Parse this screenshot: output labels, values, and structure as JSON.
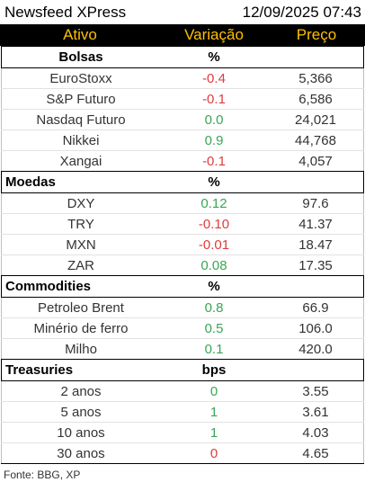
{
  "title": "Newsfeed XPress",
  "datetime": "12/09/2025 07:43",
  "columns": {
    "asset": "Ativo",
    "change": "Variação",
    "price": "Preço"
  },
  "sections": [
    {
      "name": "Bolsas",
      "unit": "%",
      "align": "center",
      "rows": [
        {
          "name": "EuroStoxx",
          "change": "-0.4",
          "sign": "neg",
          "price": "5,366"
        },
        {
          "name": "S&P Futuro",
          "change": "-0.1",
          "sign": "neg",
          "price": "6,586"
        },
        {
          "name": "Nasdaq Futuro",
          "change": "0.0",
          "sign": "pos",
          "price": "24,021"
        },
        {
          "name": "Nikkei",
          "change": "0.9",
          "sign": "pos",
          "price": "44,768"
        },
        {
          "name": "Xangai",
          "change": "-0.1",
          "sign": "neg",
          "price": "4,057"
        }
      ]
    },
    {
      "name": "Moedas",
      "unit": "%",
      "align": "left",
      "rows": [
        {
          "name": "DXY",
          "change": "0.12",
          "sign": "pos",
          "price": "97.6"
        },
        {
          "name": "TRY",
          "change": "-0.10",
          "sign": "neg",
          "price": "41.37"
        },
        {
          "name": "MXN",
          "change": "-0.01",
          "sign": "neg",
          "price": "18.47"
        },
        {
          "name": "ZAR",
          "change": "0.08",
          "sign": "pos",
          "price": "17.35"
        }
      ]
    },
    {
      "name": "Commodities",
      "unit": "%",
      "align": "left",
      "rows": [
        {
          "name": "Petroleo Brent",
          "change": "0.8",
          "sign": "pos",
          "price": "66.9"
        },
        {
          "name": "Minério de ferro",
          "change": "0.5",
          "sign": "pos",
          "price": "106.0"
        },
        {
          "name": "Milho",
          "change": "0.1",
          "sign": "pos",
          "price": "420.0"
        }
      ]
    },
    {
      "name": "Treasuries",
      "unit": "bps",
      "align": "left",
      "rows": [
        {
          "name": "2 anos",
          "change": "0",
          "sign": "pos",
          "price": "3.55"
        },
        {
          "name": "5 anos",
          "change": "1",
          "sign": "pos",
          "price": "3.61"
        },
        {
          "name": "10 anos",
          "change": "1",
          "sign": "pos",
          "price": "4.03"
        },
        {
          "name": "30 anos",
          "change": "0",
          "sign": "neg",
          "price": "4.65"
        }
      ]
    }
  ],
  "source": "Fonte: BBG, XP"
}
